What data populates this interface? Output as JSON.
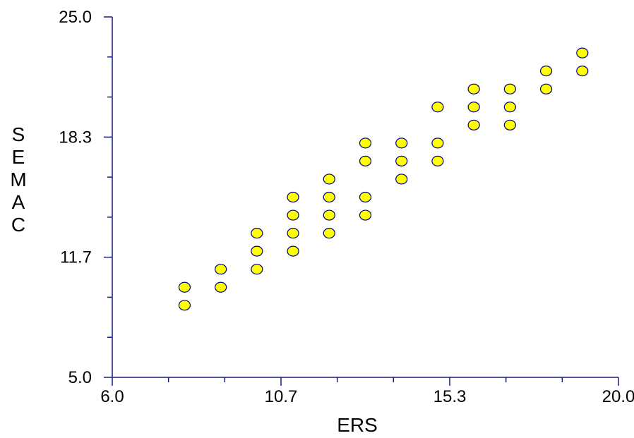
{
  "chart_data": {
    "type": "scatter",
    "title": "",
    "xlabel": "ERS",
    "ylabel": "SEMAC",
    "xlim": [
      6.0,
      20.0
    ],
    "ylim": [
      5.0,
      25.0
    ],
    "x_tick_labels": [
      "6.0",
      "10.7",
      "15.3",
      "20.0"
    ],
    "y_tick_labels": [
      "5.0",
      "11.7",
      "18.3",
      "25.0"
    ],
    "grid": false,
    "legend": "none",
    "colors": {
      "axis": "#1a1a80",
      "marker_fill": "#ffff00",
      "marker_edge": "#000080"
    },
    "series": [
      {
        "points": [
          [
            8.0,
            9.0
          ],
          [
            8.0,
            10.0
          ],
          [
            9.0,
            10.0
          ],
          [
            9.0,
            11.0
          ],
          [
            10.0,
            11.0
          ],
          [
            10.0,
            12.0
          ],
          [
            10.0,
            13.0
          ],
          [
            11.0,
            12.0
          ],
          [
            11.0,
            13.0
          ],
          [
            11.0,
            14.0
          ],
          [
            11.0,
            15.0
          ],
          [
            12.0,
            13.0
          ],
          [
            12.0,
            14.0
          ],
          [
            12.0,
            15.0
          ],
          [
            12.0,
            16.0
          ],
          [
            13.0,
            14.0
          ],
          [
            13.0,
            15.0
          ],
          [
            13.0,
            17.0
          ],
          [
            13.0,
            18.0
          ],
          [
            14.0,
            16.0
          ],
          [
            14.0,
            17.0
          ],
          [
            14.0,
            18.0
          ],
          [
            15.0,
            17.0
          ],
          [
            15.0,
            18.0
          ],
          [
            15.0,
            20.0
          ],
          [
            16.0,
            19.0
          ],
          [
            16.0,
            20.0
          ],
          [
            16.0,
            21.0
          ],
          [
            17.0,
            19.0
          ],
          [
            17.0,
            20.0
          ],
          [
            17.0,
            21.0
          ],
          [
            18.0,
            21.0
          ],
          [
            18.0,
            22.0
          ],
          [
            19.0,
            22.0
          ],
          [
            19.0,
            23.0
          ]
        ]
      }
    ]
  }
}
